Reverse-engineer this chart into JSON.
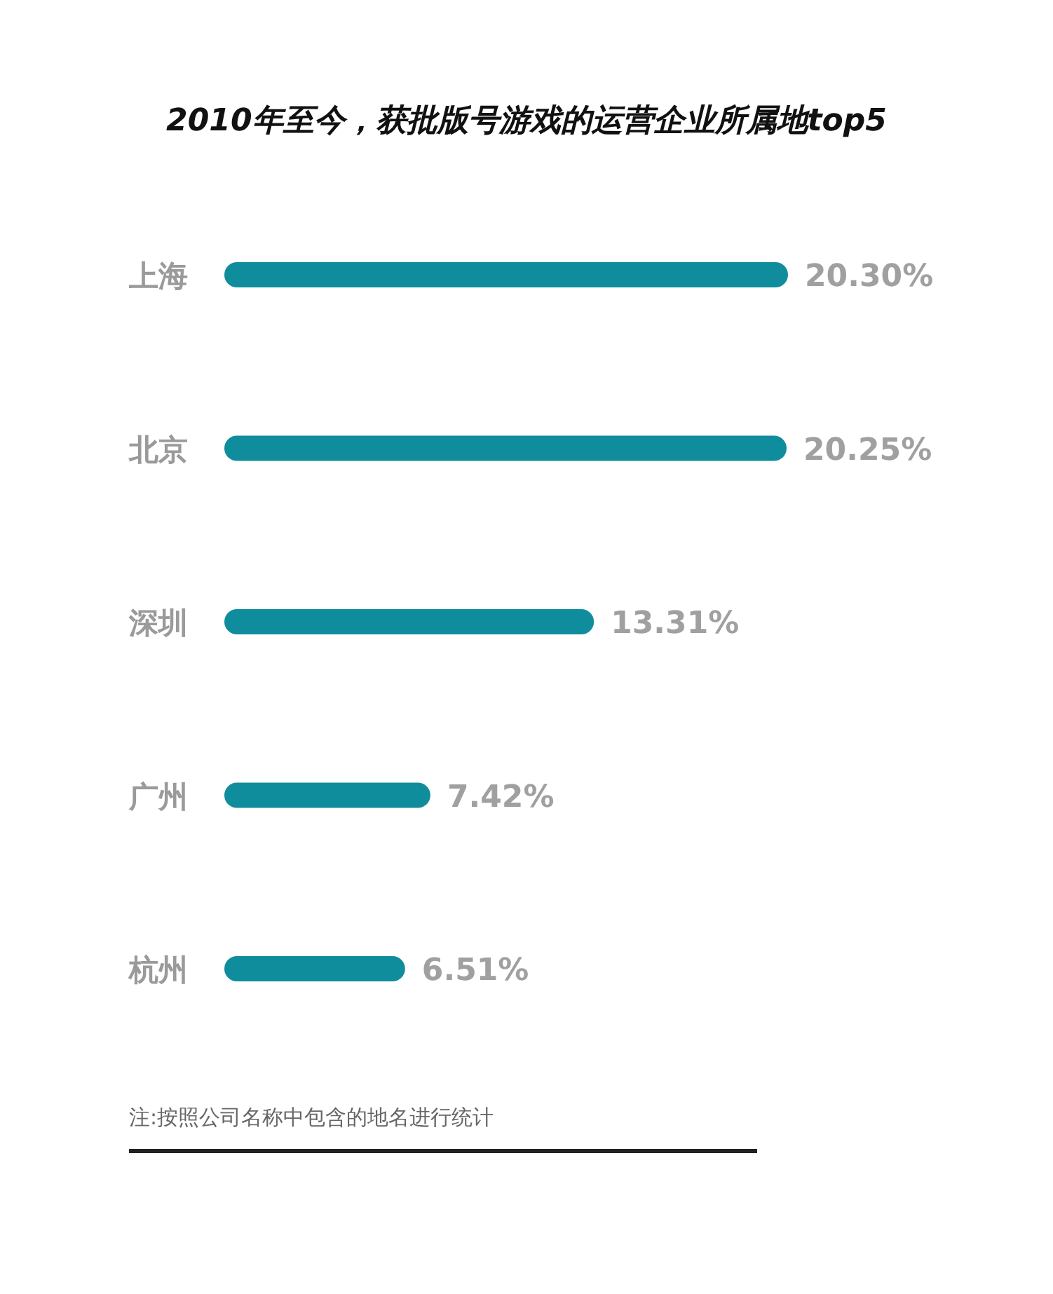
{
  "chart_data": {
    "type": "bar",
    "orientation": "horizontal",
    "title": "2010年至今，获批版号游戏的运营企业所属地top5",
    "categories": [
      "上海",
      "北京",
      "深圳",
      "广州",
      "杭州"
    ],
    "values": [
      20.3,
      20.25,
      13.31,
      7.42,
      6.51
    ],
    "value_labels": [
      "20.30%",
      "20.25%",
      "13.31%",
      "7.42%",
      "6.51%"
    ],
    "color": "#0f8d9c",
    "annotations": [
      "注:按照公司名称中包含的地名进行统计"
    ]
  }
}
